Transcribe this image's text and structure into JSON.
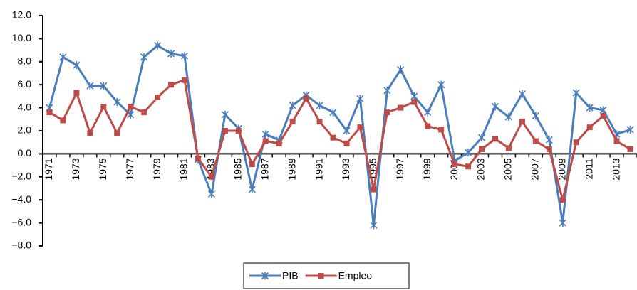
{
  "chart_data": {
    "type": "line",
    "categories": [
      "1971",
      null,
      "1973",
      null,
      "1975",
      null,
      "1977",
      null,
      "1979",
      null,
      "1981",
      null,
      "1983",
      null,
      "1985",
      null,
      "1987",
      null,
      "1989",
      null,
      "1991",
      null,
      "1993",
      null,
      "1995",
      null,
      "1997",
      null,
      "1999",
      null,
      "2001",
      null,
      "2003",
      null,
      "2005",
      null,
      "2007",
      null,
      "2009",
      null,
      "2011",
      null,
      "2013",
      null
    ],
    "series": [
      {
        "name": "PIB",
        "color": "#4a7ebb",
        "marker": "star",
        "values": [
          4.0,
          8.4,
          7.7,
          5.9,
          5.9,
          4.5,
          3.4,
          8.4,
          9.4,
          8.7,
          8.5,
          -0.5,
          -3.5,
          3.4,
          2.2,
          -3.1,
          1.7,
          1.2,
          4.2,
          5.1,
          4.2,
          3.6,
          2.0,
          4.8,
          -6.2,
          5.5,
          7.3,
          5.0,
          3.6,
          6.0,
          -0.6,
          0.1,
          1.4,
          4.1,
          3.2,
          5.2,
          3.3,
          1.2,
          -6.0,
          5.3,
          4.0,
          3.8,
          1.7,
          2.1
        ]
      },
      {
        "name": "Empleo",
        "color": "#be4b48",
        "marker": "square",
        "values": [
          3.6,
          2.9,
          5.3,
          1.8,
          4.1,
          1.8,
          4.1,
          3.6,
          4.9,
          6.0,
          6.4,
          -0.4,
          -2.0,
          2.0,
          2.0,
          -0.9,
          1.1,
          0.9,
          2.8,
          4.8,
          2.8,
          1.4,
          0.9,
          2.3,
          -3.1,
          3.6,
          4.0,
          4.5,
          2.4,
          2.1,
          -0.9,
          -1.1,
          0.4,
          1.3,
          0.5,
          2.8,
          1.1,
          0.4,
          -4.0,
          1.0,
          2.3,
          3.3,
          1.1,
          0.4
        ]
      }
    ],
    "ylim": [
      -8,
      12
    ],
    "yticks": [
      {
        "value": -8,
        "label": "−8.0"
      },
      {
        "value": -6,
        "label": "−6.0"
      },
      {
        "value": -4,
        "label": "−4.0"
      },
      {
        "value": -2,
        "label": "−2.0"
      },
      {
        "value": 0,
        "label": "0.0"
      },
      {
        "value": 2,
        "label": "2.0"
      },
      {
        "value": 4,
        "label": "4.0"
      },
      {
        "value": 6,
        "label": "6.0"
      },
      {
        "value": 8,
        "label": "8.0"
      },
      {
        "value": 10,
        "label": "10.0"
      },
      {
        "value": 12,
        "label": "12.0"
      }
    ],
    "grid": false,
    "legend": "bottom"
  }
}
